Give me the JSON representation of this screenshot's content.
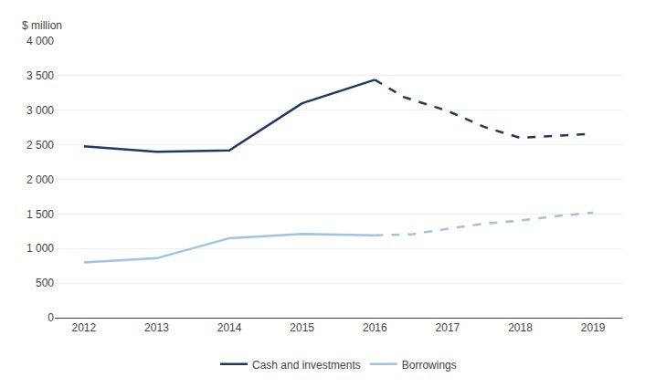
{
  "chart_data": {
    "type": "line",
    "ylabel": "$ million",
    "series": [
      {
        "name": "Cash and investments",
        "color": "#1F3864",
        "line_style": "solid",
        "x": [
          2012,
          2013,
          2014,
          2015,
          2016
        ],
        "values": [
          2480,
          2400,
          2420,
          3100,
          3440
        ]
      },
      {
        "name": "Cash and investments",
        "color": "#1F3864",
        "line_style": "dashed",
        "x": [
          2016,
          2016.4,
          2017,
          2017.5,
          2018,
          2018.5,
          2019
        ],
        "values": [
          3440,
          3190,
          2990,
          2760,
          2600,
          2630,
          2660
        ]
      },
      {
        "name": "Borrowings",
        "color": "#9DC3E6",
        "line_style": "solid",
        "x": [
          2012,
          2013,
          2014,
          2015,
          2016
        ],
        "values": [
          800,
          860,
          1150,
          1210,
          1190
        ]
      },
      {
        "name": "Borrowings",
        "color": "#9DC3E6",
        "line_style": "dashed",
        "x": [
          2016,
          2016.5,
          2017,
          2017.5,
          2018,
          2018.5,
          2019
        ],
        "values": [
          1190,
          1205,
          1285,
          1360,
          1405,
          1470,
          1520
        ]
      }
    ],
    "xlim": [
      2011.6,
      2019.4
    ],
    "xticks": [
      2012,
      2013,
      2014,
      2015,
      2016,
      2017,
      2018,
      2019
    ],
    "ylim": [
      0,
      4000
    ],
    "yticks": [
      0,
      500,
      {
        "value": 1000,
        "label": "1 000"
      },
      {
        "value": 1500,
        "label": "1 500"
      },
      {
        "value": 2000,
        "label": "2 000"
      },
      {
        "value": 2500,
        "label": "2 500"
      },
      {
        "value": 3000,
        "label": "3 000"
      },
      {
        "value": 3500,
        "label": "3 500"
      },
      {
        "value": 4000,
        "label": "4 000"
      }
    ],
    "grid": true,
    "legend": "bottom"
  }
}
